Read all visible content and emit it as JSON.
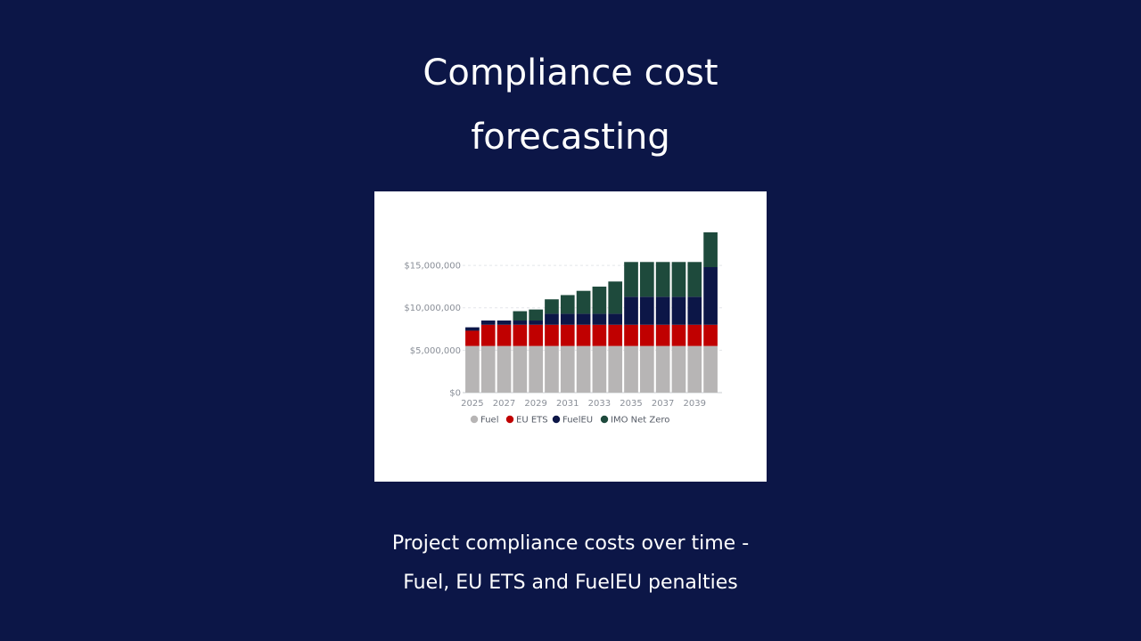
{
  "header": {
    "title_line1": "Compliance cost",
    "title_line2": "forecasting"
  },
  "footer": {
    "line1": "Project compliance costs over time -",
    "line2": "Fuel, EU ETS and FuelEU penalties"
  },
  "chart_data": {
    "type": "bar",
    "stacked": true,
    "categories": [
      "2025",
      "2026",
      "2027",
      "2028",
      "2029",
      "2030",
      "2031",
      "2032",
      "2033",
      "2034",
      "2035",
      "2036",
      "2037",
      "2038",
      "2039",
      "2040"
    ],
    "x_tick_labels": [
      "2025",
      "2027",
      "2029",
      "2031",
      "2033",
      "2035",
      "2037",
      "2039"
    ],
    "y_tick_labels": [
      "$0",
      "$5,000,000",
      "$10,000,000",
      "$15,000,000"
    ],
    "y_ticks": [
      0,
      5000000,
      10000000,
      15000000
    ],
    "ylim": [
      0,
      19000000
    ],
    "grid": true,
    "legend_position": "bottom",
    "series": [
      {
        "name": "Fuel",
        "color": "#b7b5b5",
        "values": [
          5500000,
          5500000,
          5500000,
          5500000,
          5500000,
          5500000,
          5500000,
          5500000,
          5500000,
          5500000,
          5500000,
          5500000,
          5500000,
          5500000,
          5500000,
          5500000
        ]
      },
      {
        "name": "EU ETS",
        "color": "#c00000",
        "values": [
          1800000,
          2500000,
          2500000,
          2500000,
          2500000,
          2500000,
          2500000,
          2500000,
          2500000,
          2500000,
          2500000,
          2500000,
          2500000,
          2500000,
          2500000,
          2500000
        ]
      },
      {
        "name": "FuelEU",
        "color": "#0c1647",
        "values": [
          400000,
          500000,
          500000,
          500000,
          500000,
          1300000,
          1300000,
          1300000,
          1300000,
          1300000,
          3300000,
          3300000,
          3300000,
          3300000,
          3300000,
          6800000
        ]
      },
      {
        "name": "IMO Net Zero",
        "color": "#1e4a3c",
        "values": [
          0,
          0,
          0,
          1100000,
          1300000,
          1700000,
          2200000,
          2700000,
          3200000,
          3800000,
          4100000,
          4100000,
          4100000,
          4100000,
          4100000,
          4100000
        ]
      }
    ]
  },
  "colors": {
    "background": "#0c1647",
    "card": "#ffffff"
  }
}
